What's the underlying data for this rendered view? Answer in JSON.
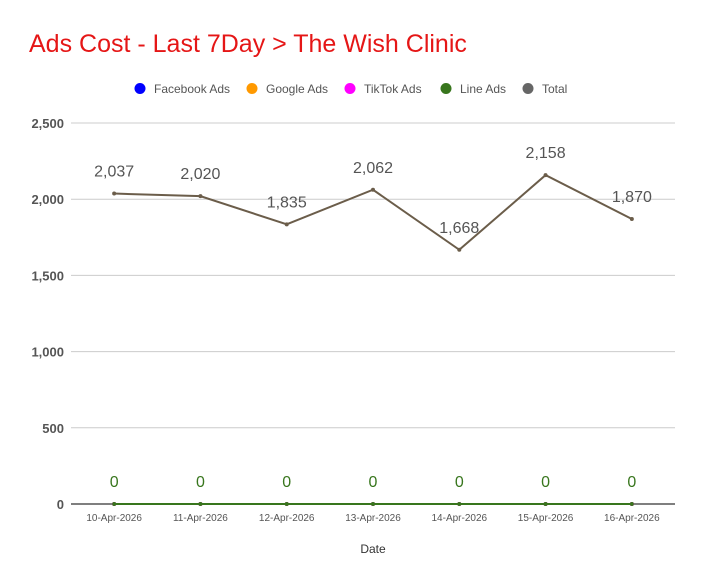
{
  "title": "Ads Cost - Last 7Day > The Wish Clinic",
  "chart_data": {
    "type": "line",
    "title": "Ads Cost - Last 7Day > The Wish Clinic",
    "xlabel": "Date",
    "ylabel": "",
    "ylim": [
      0,
      2500
    ],
    "yticks": [
      "0",
      "500",
      "1,000",
      "1,500",
      "2,000",
      "2,500"
    ],
    "ytick_values": [
      0,
      500,
      1000,
      1500,
      2000,
      2500
    ],
    "categories": [
      "10-Apr-2026",
      "11-Apr-2026",
      "12-Apr-2026",
      "13-Apr-2026",
      "14-Apr-2026",
      "15-Apr-2026",
      "16-Apr-2026"
    ],
    "legend_position": "top",
    "grid": true,
    "series": [
      {
        "name": "Facebook Ads",
        "color": "#0000ff",
        "values": [
          0,
          0,
          0,
          0,
          0,
          0,
          0
        ]
      },
      {
        "name": "Google Ads",
        "color": "#ff9900",
        "values": [
          0,
          0,
          0,
          0,
          0,
          0,
          0
        ]
      },
      {
        "name": "TikTok Ads",
        "color": "#ff00ff",
        "values": [
          0,
          0,
          0,
          0,
          0,
          0,
          0
        ]
      },
      {
        "name": "Line Ads",
        "color": "#38761d",
        "values": [
          0,
          0,
          0,
          0,
          0,
          0,
          0
        ],
        "data_labels": [
          "0",
          "0",
          "0",
          "0",
          "0",
          "0",
          "0"
        ]
      },
      {
        "name": "Total",
        "color": "#666666",
        "line_color": "#6b5d4a",
        "values": [
          2037,
          2020,
          1835,
          2062,
          1668,
          2158,
          1870
        ],
        "data_labels": [
          "2,037",
          "2,020",
          "1,835",
          "2,062",
          "1,668",
          "2,158",
          "1,870"
        ]
      }
    ]
  }
}
